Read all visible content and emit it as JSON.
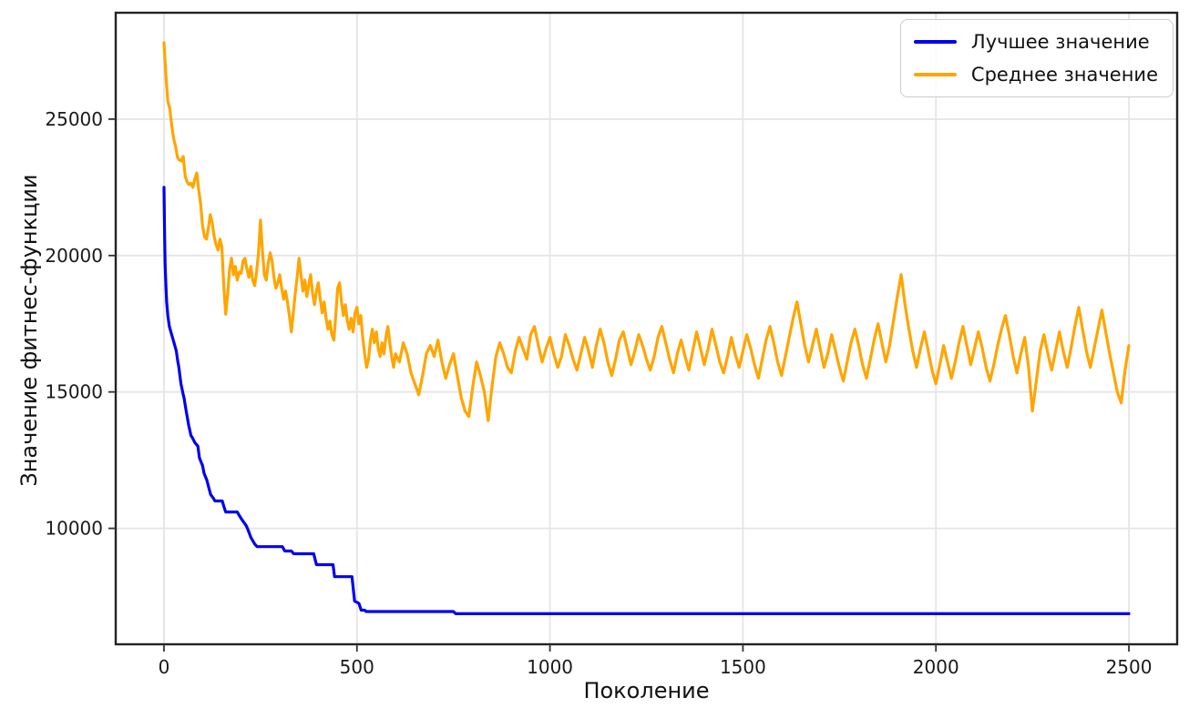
{
  "figure": {
    "background": "#ffffff",
    "spine_color": "#222222",
    "grid_color": "#e5e5e5",
    "tick_color": "#333333"
  },
  "legend": {
    "position": "upper right",
    "items": [
      {
        "label": "Лучшее значение",
        "color": "#0000ee"
      },
      {
        "label": "Среднее значение",
        "color": "#ffa500"
      }
    ]
  },
  "chart_data": {
    "type": "line",
    "title": "",
    "xlabel": "Поколение",
    "ylabel": "Значение фитнес-функции",
    "xlim": [
      -125,
      2625
    ],
    "ylim": [
      5750,
      28900
    ],
    "x_ticks": [
      0,
      500,
      1000,
      1500,
      2000,
      2500
    ],
    "y_ticks": [
      10000,
      15000,
      20000,
      25000
    ],
    "grid": true,
    "legend_position": "upper right",
    "series": [
      {
        "name": "Лучшее значение",
        "color": "#0000ee",
        "linewidth": 3.2,
        "x": [
          0,
          1,
          2,
          3,
          5,
          7,
          10,
          14,
          20,
          26,
          32,
          36,
          38,
          44,
          50,
          52,
          57,
          64,
          70,
          73,
          80,
          88,
          92,
          100,
          104,
          111,
          116,
          121,
          128,
          132,
          151,
          156,
          160,
          190,
          194,
          201,
          213,
          218,
          225,
          229,
          235,
          241,
          307,
          313,
          330,
          336,
          388,
          395,
          438,
          442,
          487,
          494,
          505,
          511,
          520,
          524,
          750,
          756,
          2500
        ],
        "y": [
          22500,
          21400,
          20500,
          19700,
          18900,
          18300,
          17800,
          17400,
          17100,
          16800,
          16500,
          16100,
          15950,
          15300,
          14900,
          14780,
          14350,
          13780,
          13400,
          13340,
          13150,
          13010,
          12580,
          12300,
          12010,
          11770,
          11500,
          11240,
          11100,
          11005,
          11005,
          10770,
          10600,
          10600,
          10500,
          10340,
          10100,
          9940,
          9670,
          9570,
          9430,
          9330,
          9330,
          9170,
          9170,
          9070,
          9070,
          8670,
          8670,
          8230,
          8230,
          7330,
          7250,
          7000,
          7000,
          6950,
          6950,
          6870,
          6870
        ]
      },
      {
        "name": "Среднее значение",
        "color": "#ffa500",
        "linewidth": 3.2,
        "x": [
          0,
          5,
          10,
          15,
          20,
          25,
          30,
          35,
          40,
          45,
          50,
          55,
          60,
          65,
          70,
          75,
          80,
          85,
          90,
          95,
          100,
          105,
          110,
          115,
          120,
          125,
          130,
          135,
          140,
          145,
          150,
          155,
          160,
          165,
          170,
          175,
          180,
          185,
          190,
          195,
          200,
          205,
          210,
          215,
          220,
          225,
          230,
          235,
          240,
          245,
          250,
          255,
          260,
          265,
          270,
          275,
          280,
          285,
          290,
          295,
          300,
          305,
          310,
          315,
          320,
          325,
          330,
          335,
          340,
          345,
          350,
          355,
          360,
          365,
          370,
          375,
          380,
          385,
          390,
          395,
          400,
          405,
          410,
          415,
          420,
          425,
          430,
          435,
          440,
          445,
          450,
          455,
          460,
          465,
          470,
          475,
          480,
          485,
          490,
          495,
          500,
          505,
          510,
          515,
          520,
          525,
          530,
          535,
          540,
          545,
          550,
          555,
          560,
          565,
          570,
          575,
          580,
          585,
          590,
          595,
          600,
          610,
          620,
          630,
          640,
          650,
          660,
          670,
          680,
          690,
          700,
          710,
          720,
          730,
          740,
          750,
          760,
          770,
          780,
          790,
          800,
          810,
          820,
          830,
          840,
          850,
          860,
          870,
          880,
          890,
          900,
          910,
          920,
          930,
          940,
          950,
          960,
          970,
          980,
          990,
          1000,
          1010,
          1020,
          1030,
          1040,
          1050,
          1060,
          1070,
          1080,
          1090,
          1100,
          1110,
          1120,
          1130,
          1140,
          1150,
          1160,
          1170,
          1180,
          1190,
          1200,
          1210,
          1220,
          1230,
          1240,
          1250,
          1260,
          1270,
          1280,
          1290,
          1300,
          1310,
          1320,
          1330,
          1340,
          1350,
          1360,
          1370,
          1380,
          1390,
          1400,
          1410,
          1420,
          1430,
          1440,
          1450,
          1460,
          1470,
          1480,
          1490,
          1500,
          1510,
          1520,
          1530,
          1540,
          1550,
          1560,
          1570,
          1580,
          1590,
          1600,
          1610,
          1620,
          1630,
          1640,
          1650,
          1660,
          1670,
          1680,
          1690,
          1700,
          1710,
          1720,
          1730,
          1740,
          1750,
          1760,
          1770,
          1780,
          1790,
          1800,
          1810,
          1820,
          1830,
          1840,
          1850,
          1860,
          1870,
          1880,
          1890,
          1900,
          1910,
          1920,
          1930,
          1940,
          1950,
          1960,
          1970,
          1980,
          1990,
          2000,
          2010,
          2020,
          2030,
          2040,
          2050,
          2060,
          2070,
          2080,
          2090,
          2100,
          2110,
          2120,
          2130,
          2140,
          2150,
          2160,
          2170,
          2180,
          2190,
          2200,
          2210,
          2220,
          2230,
          2240,
          2250,
          2260,
          2270,
          2280,
          2290,
          2300,
          2310,
          2320,
          2330,
          2340,
          2350,
          2360,
          2370,
          2380,
          2390,
          2400,
          2410,
          2420,
          2430,
          2440,
          2450,
          2460,
          2470,
          2480,
          2490,
          2500
        ],
        "y": [
          27800,
          26600,
          25650,
          25400,
          24800,
          24300,
          24000,
          23600,
          23500,
          23470,
          23630,
          22900,
          22700,
          22600,
          22650,
          22500,
          22800,
          23030,
          22400,
          21900,
          21100,
          20700,
          20600,
          21000,
          21500,
          21200,
          20700,
          20400,
          20200,
          20600,
          20300,
          18900,
          17850,
          18600,
          19500,
          19900,
          19300,
          19600,
          19100,
          19400,
          19350,
          19800,
          19900,
          19500,
          19200,
          19600,
          19100,
          18900,
          19400,
          20100,
          21300,
          20200,
          19300,
          19100,
          19700,
          20100,
          19800,
          19200,
          18800,
          19000,
          19300,
          18800,
          18400,
          18700,
          18300,
          17800,
          17200,
          17900,
          18600,
          19200,
          19900,
          19300,
          18700,
          19100,
          18500,
          18900,
          19300,
          18600,
          18200,
          18700,
          19000,
          18400,
          17900,
          18300,
          17700,
          17300,
          17600,
          17100,
          16900,
          17800,
          18800,
          19000,
          18300,
          17800,
          18200,
          17600,
          17300,
          17700,
          17200,
          17900,
          18100,
          17500,
          17800,
          17000,
          16400,
          15900,
          16200,
          16900,
          17300,
          16800,
          17200,
          16600,
          16300,
          16800,
          16400,
          17000,
          17400,
          16800,
          16300,
          15900,
          16400,
          16100,
          16800,
          16400,
          15700,
          15300,
          14900,
          15600,
          16400,
          16700,
          16300,
          16900,
          16100,
          15500,
          16000,
          16400,
          15600,
          14800,
          14300,
          14100,
          15200,
          16100,
          15600,
          15000,
          13950,
          15200,
          16300,
          16800,
          16400,
          15900,
          15700,
          16500,
          17000,
          16600,
          16200,
          17100,
          17400,
          16700,
          16100,
          16600,
          17000,
          16400,
          15900,
          16300,
          17100,
          16700,
          16200,
          15800,
          16400,
          17000,
          16500,
          15900,
          16700,
          17300,
          16800,
          16100,
          15600,
          16200,
          16900,
          17200,
          16600,
          16000,
          16500,
          17100,
          16700,
          16200,
          15800,
          16300,
          17000,
          17400,
          16800,
          16200,
          15700,
          16400,
          16900,
          16300,
          15800,
          16500,
          17200,
          16600,
          16000,
          16600,
          17300,
          16700,
          16100,
          15700,
          16300,
          17000,
          16400,
          15900,
          16500,
          17100,
          16600,
          16000,
          15500,
          16200,
          16900,
          17400,
          16800,
          16100,
          15600,
          16300,
          17000,
          17700,
          18300,
          17500,
          16700,
          16100,
          16700,
          17300,
          16600,
          15900,
          16400,
          17100,
          16500,
          15900,
          15400,
          16100,
          16800,
          17300,
          16700,
          16000,
          15500,
          16200,
          16900,
          17500,
          16800,
          16100,
          16700,
          17600,
          18500,
          19300,
          18200,
          17300,
          16500,
          15900,
          16600,
          17200,
          16500,
          15800,
          15300,
          16000,
          16700,
          16100,
          15500,
          16100,
          16800,
          17400,
          16700,
          16000,
          16600,
          17200,
          16600,
          15900,
          15400,
          16000,
          16700,
          17300,
          17800,
          17100,
          16300,
          15700,
          16400,
          17000,
          15900,
          14300,
          15400,
          16500,
          17100,
          16400,
          15800,
          16500,
          17200,
          16500,
          15900,
          16600,
          17400,
          18100,
          17300,
          16500,
          15900,
          16600,
          17300,
          18000,
          17200,
          16400,
          15700,
          15000,
          14600,
          15800,
          16700
        ]
      }
    ]
  }
}
